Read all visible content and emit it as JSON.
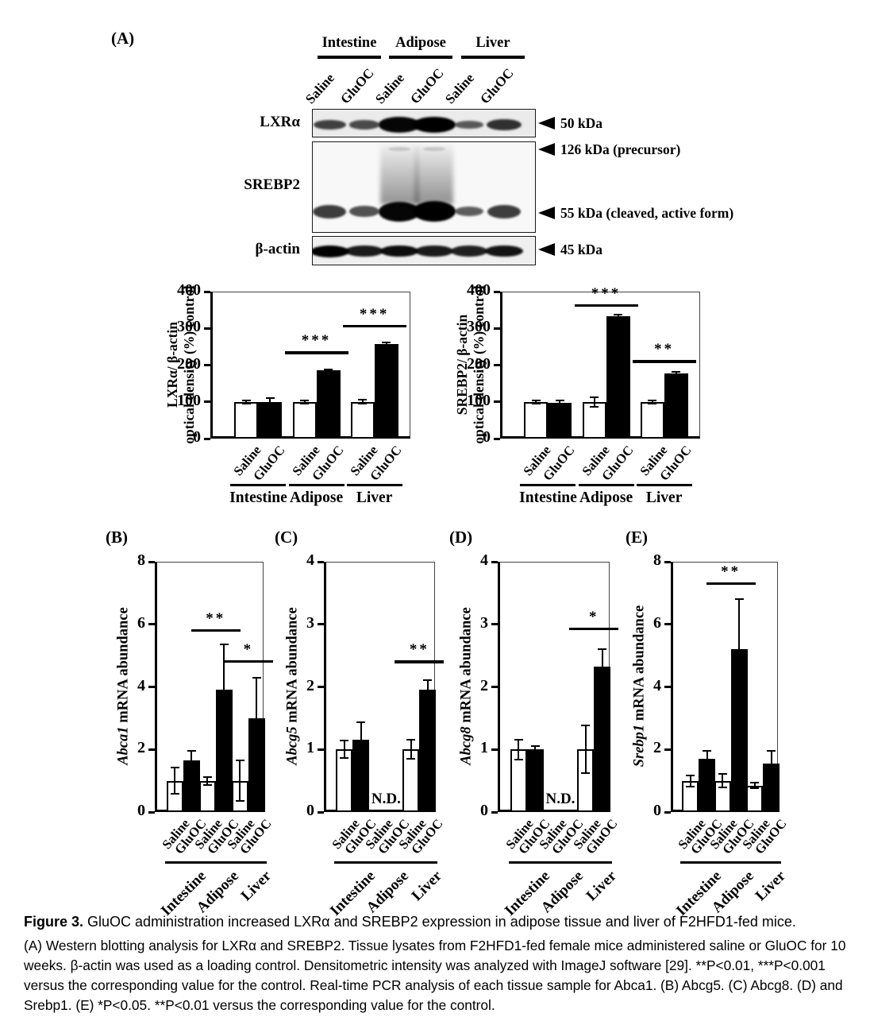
{
  "figure": {
    "panel_labels": {
      "a": "(A)",
      "b": "(B)",
      "c": "(C)",
      "d": "(D)",
      "e": "(E)"
    },
    "blot": {
      "tissues": [
        "Intestine",
        "Adipose",
        "Liver"
      ],
      "lane_labels": [
        "Saline",
        "GluOC",
        "Saline",
        "GluOC",
        "Saline",
        "GluOC"
      ],
      "rows": [
        {
          "label": "LXRα",
          "markers": [
            {
              "text": "50 kDa"
            }
          ],
          "band_intensity": [
            0.5,
            0.42,
            0.95,
            1,
            0.3,
            0.62
          ]
        },
        {
          "label": "SREBP2",
          "markers": [
            {
              "text": "126 kDa (precursor)"
            },
            {
              "text": "55 kDa (cleaved, active form)"
            }
          ],
          "band_intensity": [
            0.55,
            0.4,
            0.95,
            1,
            0.3,
            0.55
          ]
        },
        {
          "label": "β-actin",
          "markers": [
            {
              "text": "45 kDa"
            }
          ],
          "band_intensity": [
            1,
            0.8,
            0.9,
            0.8,
            0.75,
            0.85
          ]
        }
      ]
    }
  },
  "chart_data": [
    {
      "id": "lxr_density",
      "type": "bar",
      "ylabel_line1": "LXRα/ β-actin",
      "ylabel_line2": "optical density (%) control",
      "ylim": [
        0,
        400
      ],
      "yticks": [
        0,
        100,
        200,
        300,
        400
      ],
      "categories": [
        "Intestine",
        "Adipose",
        "Liver"
      ],
      "series": [
        {
          "name": "Saline",
          "fill": "white",
          "values": [
            100,
            100,
            100
          ],
          "errors": [
            4,
            4,
            5
          ]
        },
        {
          "name": "GluOC",
          "fill": "black",
          "values": [
            100,
            185,
            257
          ],
          "errors": [
            10,
            4,
            4
          ]
        }
      ],
      "sig": [
        {
          "group": 1,
          "line_y": 237,
          "text": "***"
        },
        {
          "group": 2,
          "line_y": 310,
          "text": "***"
        }
      ]
    },
    {
      "id": "srebp2_density",
      "type": "bar",
      "ylabel_line1": "SREBP2/ β-actin",
      "ylabel_line2": "optical density (%) control",
      "ylim": [
        0,
        400
      ],
      "yticks": [
        0,
        100,
        200,
        300,
        400
      ],
      "categories": [
        "Intestine",
        "Adipose",
        "Liver"
      ],
      "series": [
        {
          "name": "Saline",
          "fill": "white",
          "values": [
            100,
            100,
            100
          ],
          "errors": [
            4,
            13,
            4
          ]
        },
        {
          "name": "GluOC",
          "fill": "black",
          "values": [
            97,
            333,
            178
          ],
          "errors": [
            6,
            5,
            4
          ]
        }
      ],
      "sig": [
        {
          "group": 1,
          "line_y": 365,
          "text": "***"
        },
        {
          "group": 2,
          "line_y": 213,
          "text": "**"
        }
      ]
    },
    {
      "id": "abca1",
      "type": "bar",
      "ylabel_gene": "Abca1",
      "ylabel_rest": " mRNA abundance",
      "ylim": [
        0,
        8
      ],
      "yticks": [
        0,
        2,
        4,
        6,
        8
      ],
      "categories": [
        "Intestine",
        "Adipose",
        "Liver"
      ],
      "series": [
        {
          "name": "Saline",
          "fill": "white",
          "values": [
            1,
            1,
            1
          ],
          "errors": [
            0.42,
            0.13,
            0.65
          ]
        },
        {
          "name": "GluOC",
          "fill": "black",
          "values": [
            1.65,
            3.9,
            3
          ],
          "errors": [
            0.3,
            1.45,
            1.28
          ]
        }
      ],
      "sig": [
        {
          "group": 1,
          "line_y": 5.85,
          "text": "**"
        },
        {
          "group": 2,
          "line_y": 4.85,
          "text": "*"
        }
      ]
    },
    {
      "id": "abcg5",
      "type": "bar",
      "ylabel_gene": "Abcg5",
      "ylabel_rest": " mRNA abundance",
      "ylim": [
        0,
        4
      ],
      "yticks": [
        0,
        1,
        2,
        3,
        4
      ],
      "categories": [
        "Intestine",
        "Adipose",
        "Liver"
      ],
      "series": [
        {
          "name": "Saline",
          "fill": "white",
          "values": [
            1,
            null,
            1
          ],
          "errors": [
            0.14,
            null,
            0.15
          ]
        },
        {
          "name": "GluOC",
          "fill": "black",
          "values": [
            1.15,
            null,
            1.95
          ],
          "errors": [
            0.28,
            null,
            0.16
          ]
        }
      ],
      "nd": {
        "group": 1,
        "label": "N.D."
      },
      "sig": [
        {
          "group": 2,
          "line_y": 2.42,
          "text": "**"
        }
      ]
    },
    {
      "id": "abcg8",
      "type": "bar",
      "ylabel_gene": "Abcg8",
      "ylabel_rest": " mRNA abundance",
      "ylim": [
        0,
        4
      ],
      "yticks": [
        0,
        1,
        2,
        3,
        4
      ],
      "categories": [
        "Intestine",
        "Adipose",
        "Liver"
      ],
      "series": [
        {
          "name": "Saline",
          "fill": "white",
          "values": [
            1,
            null,
            1
          ],
          "errors": [
            0.16,
            null,
            0.38
          ]
        },
        {
          "name": "GluOC",
          "fill": "black",
          "values": [
            1,
            null,
            2.32
          ],
          "errors": [
            0.05,
            null,
            0.28
          ]
        }
      ],
      "nd": {
        "group": 1,
        "label": "N.D."
      },
      "sig": [
        {
          "group": 2,
          "line_y": 2.95,
          "text": "*"
        }
      ]
    },
    {
      "id": "srebp1",
      "type": "bar",
      "ylabel_gene": "Srebp1",
      "ylabel_rest": " mRNA abundance",
      "ylim": [
        0,
        8
      ],
      "yticks": [
        0,
        2,
        4,
        6,
        8
      ],
      "categories": [
        "Intestine",
        "Adipose",
        "Liver"
      ],
      "series": [
        {
          "name": "Saline",
          "fill": "white",
          "values": [
            1,
            1,
            0.85
          ],
          "errors": [
            0.18,
            0.22,
            0.08
          ]
        },
        {
          "name": "GluOC",
          "fill": "black",
          "values": [
            1.7,
            5.2,
            1.55
          ],
          "errors": [
            0.25,
            1.6,
            0.4
          ]
        }
      ],
      "sig": [
        {
          "group": 1,
          "line_y": 7.35,
          "text": "**"
        }
      ]
    }
  ],
  "caption": {
    "title_bold": "Figure 3.",
    "title_rest": "GluOC administration increased LXRα and SREBP2 expression in adipose tissue and liver of F2HFD1-fed mice.",
    "body": "(A) Western blotting analysis for LXRα and SREBP2. Tissue lysates from F2HFD1-fed female mice administered saline or GluOC for 10 weeks. β-actin was used as a loading control. Densitometric intensity was analyzed with ImageJ software [29]. **P<0.01, ***P<0.001 versus the corresponding value for the control. Real-time PCR analysis of each tissue sample for Abca1. (B) Abcg5. (C) Abcg8. (D) and Srebp1. (E) *P<0.05. **P<0.01 versus the corresponding value for the control."
  }
}
